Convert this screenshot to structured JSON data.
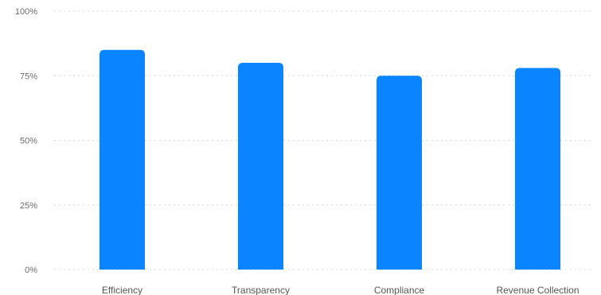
{
  "chart_data": {
    "type": "bar",
    "categories": [
      "Efficiency",
      "Transparency",
      "Compliance",
      "Revenue Collection"
    ],
    "values": [
      85,
      80,
      75,
      78
    ],
    "ylim": [
      0,
      100
    ],
    "yticks": [
      0,
      25,
      50,
      75,
      100
    ],
    "ytick_labels": [
      "0%",
      "25%",
      "50%",
      "75%",
      "100%"
    ],
    "grid": true,
    "legend": "none",
    "colors": {
      "bar": "#0a84ff"
    }
  }
}
